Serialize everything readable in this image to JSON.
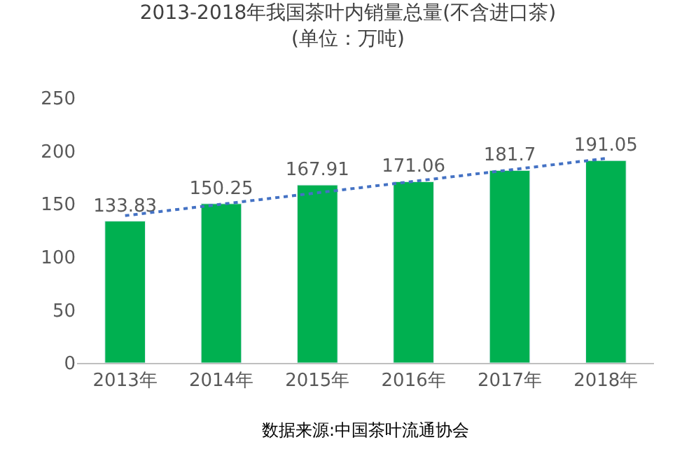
{
  "chart_data": {
    "type": "bar",
    "title": "2013-2018年我国茶叶内销量总量(不含进口茶)\n(单位：万吨)",
    "categories": [
      "2013年",
      "2014年",
      "2015年",
      "2016年",
      "2017年",
      "2018年"
    ],
    "series": [
      {
        "color": "#00b050",
        "values": [
          133.83,
          150.25,
          167.91,
          171.06,
          181.7,
          191.05
        ],
        "value_labels": [
          "133.83",
          "150.25",
          "167.91",
          "171.06",
          "181.7",
          "191.05"
        ]
      },
      {
        "type": "line",
        "color": "#4472c4",
        "line_style": "dotted",
        "marker": "none",
        "x": [
          "2013年",
          "2018年"
        ],
        "values": [
          139,
          193
        ]
      }
    ],
    "ylim": [
      0,
      250
    ],
    "yticks": [
      0,
      50,
      100,
      150,
      200,
      250
    ],
    "grid": false,
    "annotations": [
      "数据来源:中国茶叶流通协会"
    ]
  }
}
